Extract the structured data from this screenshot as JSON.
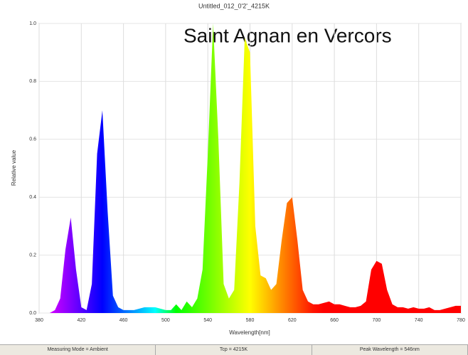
{
  "chart_data": {
    "type": "area",
    "title": "Untitled_012_0'2'_4215K",
    "annotation": "Saint Agnan en Vercors",
    "x_label": "Wavelength[nm]",
    "y_label": "Relative value",
    "x": [
      380,
      385,
      390,
      395,
      400,
      405,
      410,
      415,
      420,
      425,
      430,
      435,
      440,
      445,
      450,
      455,
      460,
      465,
      470,
      475,
      480,
      485,
      490,
      495,
      500,
      505,
      510,
      515,
      520,
      525,
      530,
      535,
      540,
      545,
      550,
      555,
      560,
      565,
      570,
      575,
      580,
      585,
      590,
      595,
      600,
      605,
      610,
      615,
      620,
      625,
      630,
      635,
      640,
      645,
      650,
      655,
      660,
      665,
      670,
      675,
      680,
      685,
      690,
      695,
      700,
      705,
      710,
      715,
      720,
      725,
      730,
      735,
      740,
      745,
      750,
      755,
      760,
      765,
      770,
      775,
      780
    ],
    "values": [
      0,
      0,
      0,
      0.01,
      0.05,
      0.22,
      0.33,
      0.15,
      0.02,
      0.01,
      0.1,
      0.55,
      0.7,
      0.35,
      0.06,
      0.02,
      0.01,
      0.01,
      0.01,
      0.015,
      0.02,
      0.02,
      0.02,
      0.015,
      0.01,
      0.01,
      0.03,
      0.01,
      0.04,
      0.02,
      0.05,
      0.15,
      0.55,
      1.0,
      0.6,
      0.1,
      0.05,
      0.08,
      0.45,
      0.95,
      0.9,
      0.3,
      0.13,
      0.12,
      0.08,
      0.1,
      0.25,
      0.38,
      0.4,
      0.25,
      0.08,
      0.04,
      0.03,
      0.03,
      0.035,
      0.04,
      0.03,
      0.03,
      0.025,
      0.02,
      0.02,
      0.025,
      0.04,
      0.15,
      0.18,
      0.17,
      0.08,
      0.03,
      0.02,
      0.02,
      0.015,
      0.02,
      0.015,
      0.015,
      0.02,
      0.01,
      0.01,
      0.015,
      0.02,
      0.025,
      0.025
    ],
    "xlim": [
      380,
      780
    ],
    "xticks": [
      380,
      420,
      460,
      500,
      540,
      580,
      620,
      660,
      700,
      740,
      780
    ],
    "ylim": [
      0,
      1
    ],
    "yticks": [
      {
        "value": 0,
        "label": "0.0"
      },
      0.2,
      0.4,
      0.6,
      0.8,
      {
        "value": 1,
        "label": "1.0"
      }
    ],
    "grid": true,
    "status": [
      "Measuring Mode = Ambient",
      "Tcp = 4215K",
      "Peak Wavelength = 546nm"
    ]
  }
}
